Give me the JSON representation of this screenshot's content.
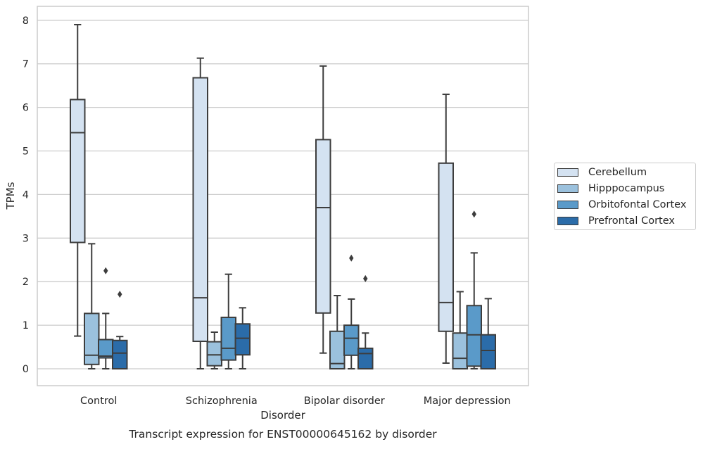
{
  "chart_data": {
    "type": "box",
    "title": "Transcript expression for ENST00000645162 by disorder",
    "xlabel": "Disorder",
    "ylabel": "TPMs",
    "ylim": [
      -0.4,
      8.3
    ],
    "yticks": [
      0,
      1,
      2,
      3,
      4,
      5,
      6,
      7,
      8
    ],
    "grid": true,
    "legend_position": "right",
    "categories": [
      "Control",
      "Schizophrenia",
      "Bipolar disorder",
      "Major depression"
    ],
    "series": [
      {
        "name": "Cerebellum",
        "color": "#d4e2f1",
        "boxes": [
          {
            "whislo": 0.75,
            "q1": 2.9,
            "med": 5.42,
            "q3": 6.18,
            "whishi": 7.9,
            "fliers": []
          },
          {
            "whislo": 0.0,
            "q1": 0.63,
            "med": 1.63,
            "q3": 6.68,
            "whishi": 7.13,
            "fliers": []
          },
          {
            "whislo": 0.36,
            "q1": 1.28,
            "med": 3.7,
            "q3": 5.26,
            "whishi": 6.95,
            "fliers": []
          },
          {
            "whislo": 0.13,
            "q1": 0.86,
            "med": 1.52,
            "q3": 4.72,
            "whishi": 6.3,
            "fliers": []
          }
        ]
      },
      {
        "name": "Hipppocampus",
        "color": "#9bc1dd",
        "boxes": [
          {
            "whislo": 0.0,
            "q1": 0.1,
            "med": 0.31,
            "q3": 1.27,
            "whishi": 2.87,
            "fliers": []
          },
          {
            "whislo": 0.0,
            "q1": 0.07,
            "med": 0.32,
            "q3": 0.62,
            "whishi": 0.84,
            "fliers": []
          },
          {
            "whislo": 0.0,
            "q1": 0.0,
            "med": 0.12,
            "q3": 0.86,
            "whishi": 1.68,
            "fliers": []
          },
          {
            "whislo": 0.0,
            "q1": 0.0,
            "med": 0.24,
            "q3": 0.82,
            "whishi": 1.77,
            "fliers": []
          }
        ]
      },
      {
        "name": "Orbitofontal Cortex",
        "color": "#5a9ac9",
        "boxes": [
          {
            "whislo": 0.0,
            "q1": 0.25,
            "med": 0.29,
            "q3": 0.67,
            "whishi": 1.27,
            "fliers": [
              2.25
            ]
          },
          {
            "whislo": 0.0,
            "q1": 0.2,
            "med": 0.47,
            "q3": 1.18,
            "whishi": 2.17,
            "fliers": []
          },
          {
            "whislo": 0.0,
            "q1": 0.31,
            "med": 0.7,
            "q3": 1.0,
            "whishi": 1.6,
            "fliers": [
              2.54
            ]
          },
          {
            "whislo": 0.0,
            "q1": 0.06,
            "med": 0.78,
            "q3": 1.45,
            "whishi": 2.66,
            "fliers": [
              3.55
            ]
          }
        ]
      },
      {
        "name": "Prefrontal Cortex",
        "color": "#2b6ca9",
        "boxes": [
          {
            "whislo": 0.0,
            "q1": 0.0,
            "med": 0.36,
            "q3": 0.65,
            "whishi": 0.74,
            "fliers": [
              1.71
            ]
          },
          {
            "whislo": 0.0,
            "q1": 0.32,
            "med": 0.7,
            "q3": 1.03,
            "whishi": 1.4,
            "fliers": []
          },
          {
            "whislo": 0.0,
            "q1": 0.0,
            "med": 0.35,
            "q3": 0.47,
            "whishi": 0.82,
            "fliers": [
              2.07
            ]
          },
          {
            "whislo": 0.0,
            "q1": 0.0,
            "med": 0.42,
            "q3": 0.78,
            "whishi": 1.61,
            "fliers": []
          }
        ]
      }
    ]
  }
}
